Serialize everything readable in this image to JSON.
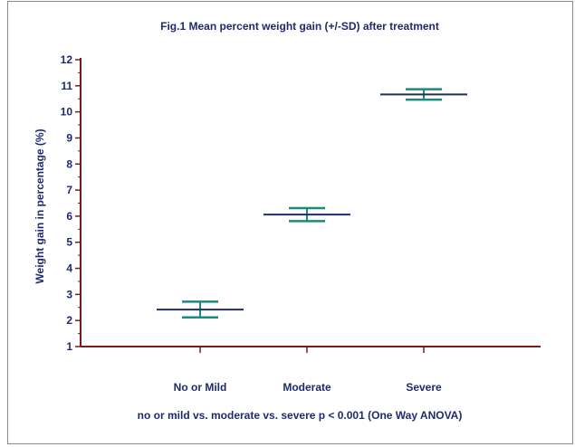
{
  "chart_data": {
    "type": "errorbar",
    "title": "Fig.1 Mean percent weight gain (+/-SD) after treatment",
    "ylabel": "Weight gain in percentage (%)",
    "xlabel": "",
    "categories": [
      "No or Mild",
      "Moderate",
      "Severe"
    ],
    "means": [
      2.42,
      6.06,
      10.67
    ],
    "sd": [
      0.3,
      0.25,
      0.2
    ],
    "ylim": [
      1,
      12
    ],
    "yticks": [
      1,
      2,
      3,
      4,
      5,
      6,
      7,
      8,
      9,
      10,
      11,
      12
    ],
    "note": "no or mild vs. moderate vs. severe  p < 0.001 (One Way ANOVA)",
    "grid": false,
    "colors": {
      "axis": "#7b1c1c",
      "mean": "#1f2a6e",
      "error": "#1a8a7f",
      "text": "#1f2a6e"
    }
  }
}
